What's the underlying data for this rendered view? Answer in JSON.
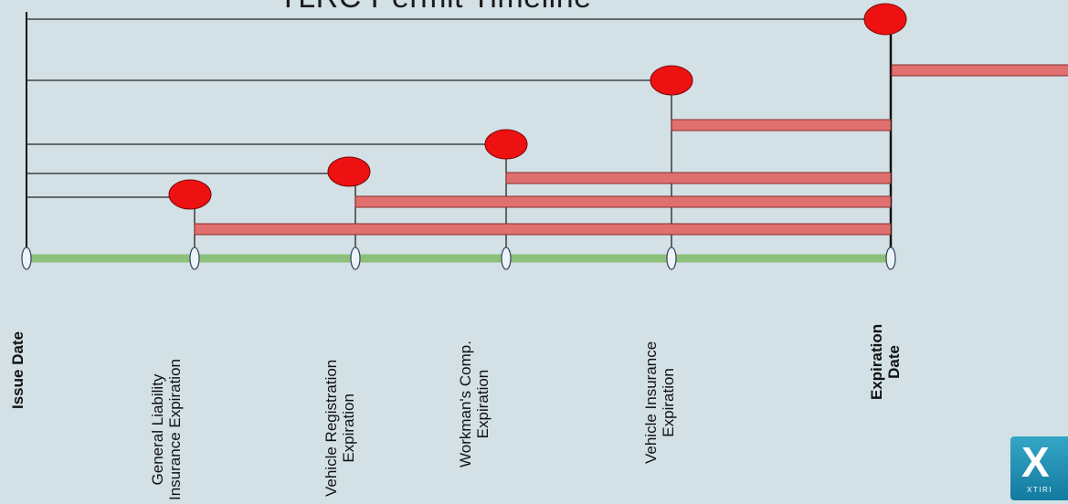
{
  "title": "TLRC Permit Timeline",
  "colors": {
    "background": "#d3e1e6",
    "timeline": "#8dc07a",
    "bar": "#e07070",
    "bar_stroke": "#8a2a2a",
    "dot": "#ee1111",
    "node": "#eef3f8"
  },
  "milestones": [
    {
      "id": "issue",
      "lines": [
        "Issue Date"
      ],
      "bold": true
    },
    {
      "id": "general-liability",
      "lines": [
        "General Liability",
        "Insurance  Expiration"
      ],
      "bold": false
    },
    {
      "id": "vehicle-registration",
      "lines": [
        "Vehicle Registration",
        "Expiration"
      ],
      "bold": false
    },
    {
      "id": "workmans-comp",
      "lines": [
        "Workman's Comp.",
        "Expiration"
      ],
      "bold": false
    },
    {
      "id": "vehicle-insurance",
      "lines": [
        "Vehicle Insurance",
        "Expiration"
      ],
      "bold": false
    },
    {
      "id": "expiration",
      "lines": [
        "Expiration",
        "Date"
      ],
      "bold": true
    }
  ],
  "logo": {
    "mark": "X",
    "word": "XTIRI"
  }
}
